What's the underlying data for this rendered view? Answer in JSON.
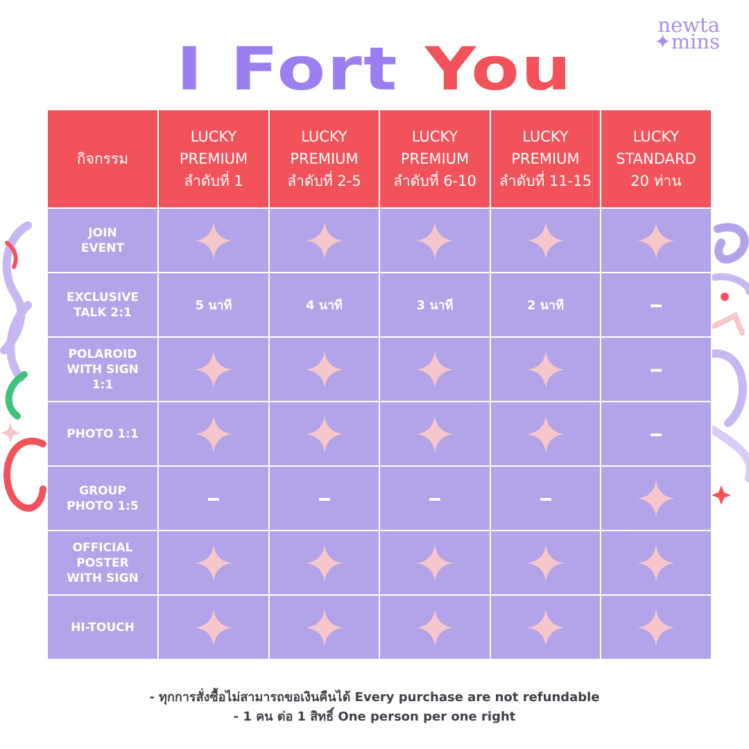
{
  "logo": {
    "line1": "newta",
    "line2": "✦mins"
  },
  "title": {
    "word1": "I Fort",
    "word2": "You"
  },
  "colors": {
    "purple": "#9b7ff0",
    "red": "#f2535b",
    "lavender": "#b3a3e8",
    "star": "#f7c6cb"
  },
  "header": {
    "activity": "กิจกรรม",
    "tiers": [
      {
        "line1": "LUCKY",
        "line2": "PREMIUM",
        "line3": "ลำดับที่ 1"
      },
      {
        "line1": "LUCKY",
        "line2": "PREMIUM",
        "line3": "ลำดับที่ 2-5"
      },
      {
        "line1": "LUCKY",
        "line2": "PREMIUM",
        "line3": "ลำดับที่ 6-10"
      },
      {
        "line1": "LUCKY",
        "line2": "PREMIUM",
        "line3": "ลำดับที่ 11-15"
      },
      {
        "line1": "LUCKY",
        "line2": "STANDARD",
        "line3": "20 ท่าน"
      }
    ]
  },
  "rows": [
    {
      "lines": [
        "JOIN",
        "EVENT"
      ],
      "cells": [
        "star",
        "star",
        "star",
        "star",
        "star"
      ]
    },
    {
      "lines": [
        "EXCLUSIVE",
        "TALK 2:1"
      ],
      "cells": [
        "5 นาที",
        "4 นาที",
        "3 นาที",
        "2 นาที",
        "dash"
      ]
    },
    {
      "lines": [
        "POLAROID",
        "WITH SIGN",
        "1:1"
      ],
      "cells": [
        "star",
        "star",
        "star",
        "star",
        "dash"
      ]
    },
    {
      "lines": [
        "PHOTO 1:1"
      ],
      "cells": [
        "star",
        "star",
        "star",
        "star",
        "dash"
      ]
    },
    {
      "lines": [
        "GROUP",
        "PHOTO 1:5"
      ],
      "cells": [
        "dash",
        "dash",
        "dash",
        "dash",
        "star"
      ]
    },
    {
      "lines": [
        "OFFICIAL",
        "POSTER",
        "WITH SIGN"
      ],
      "cells": [
        "star",
        "star",
        "star",
        "star",
        "star"
      ]
    },
    {
      "lines": [
        "HI-TOUCH"
      ],
      "cells": [
        "star",
        "star",
        "star",
        "star",
        "star"
      ]
    }
  ],
  "notes": {
    "line1": "- ทุกการสั่งซื้อไม่สามารถขอเงินคืนได้ Every purchase are not refundable",
    "line2": "- 1 คน ต่อ 1 สิทธิ์ One person per one right"
  }
}
